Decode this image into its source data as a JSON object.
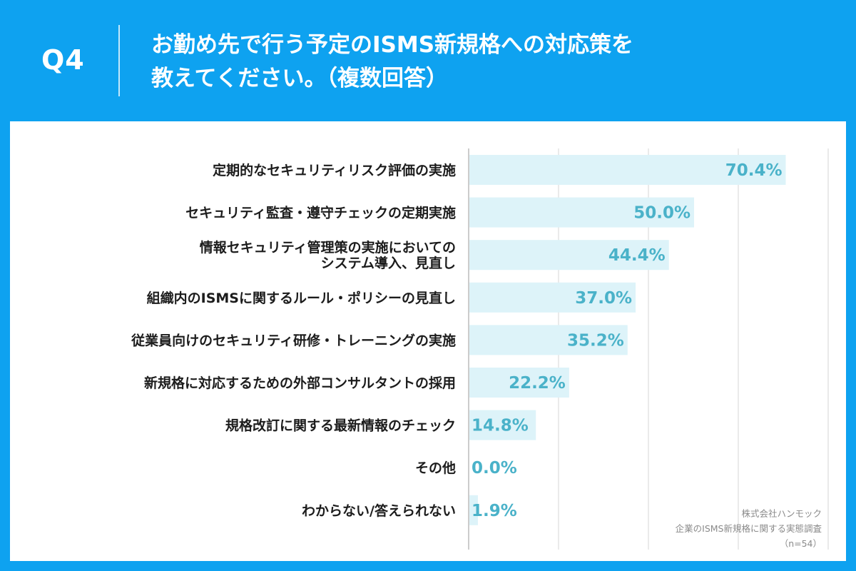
{
  "header": {
    "question_number": "Q4",
    "title_line1": "お勤め先で行う予定のISMS新規格への対応策を",
    "title_line2": "教えてください。（複数回答）"
  },
  "source": {
    "company": "株式会社ハンモック",
    "survey": "企業のISMS新規格に関する実態調査",
    "sample": "（n=54）"
  },
  "colors": {
    "background": "#0ea2f0",
    "bar": "#ddf3f9",
    "value_text": "#4ab2c9",
    "label_text": "#1c1c1c"
  },
  "chart_data": {
    "type": "bar",
    "orientation": "horizontal",
    "unit": "%",
    "xlim": [
      0,
      80
    ],
    "grid": true,
    "categories": [
      [
        "定期的なセキュリティリスク評価の実施"
      ],
      [
        "セキュリティ監査・遵守チェックの定期実施"
      ],
      [
        "情報セキュリティ管理策の実施においての",
        "システム導入、見直し"
      ],
      [
        "組織内のISMSに関するルール・ポリシーの見直し"
      ],
      [
        "従業員向けのセキュリティ研修・トレーニングの実施"
      ],
      [
        "新規格に対応するための外部コンサルタントの採用"
      ],
      [
        "規格改訂に関する最新情報のチェック"
      ],
      [
        "その他"
      ],
      [
        "わからない/答えられない"
      ]
    ],
    "values": [
      70.4,
      50.0,
      44.4,
      37.0,
      35.2,
      22.2,
      14.8,
      0.0,
      1.9
    ],
    "value_labels": [
      "70.4%",
      "50.0%",
      "44.4%",
      "37.0%",
      "35.2%",
      "22.2%",
      "14.8%",
      "0.0%",
      "1.9%"
    ]
  }
}
